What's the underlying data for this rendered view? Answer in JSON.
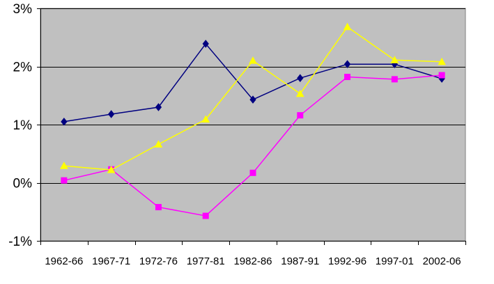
{
  "chart_data": {
    "type": "line",
    "title": "",
    "xlabel": "",
    "ylabel": "",
    "categories": [
      "1962-66",
      "1967-71",
      "1972-76",
      "1977-81",
      "1982-86",
      "1987-91",
      "1992-96",
      "1997-01",
      "2002-06"
    ],
    "ylim": [
      -1,
      3
    ],
    "y_ticks": [
      -1,
      0,
      1,
      2,
      3
    ],
    "y_tick_labels": [
      "-1%",
      "0%",
      "1%",
      "2%",
      "3%"
    ],
    "grid": "horizontal",
    "legend": "none",
    "plot_background": "#c0c0c0",
    "series": [
      {
        "color": "#000080",
        "marker": "diamond",
        "values": [
          1.05,
          1.18,
          1.3,
          2.39,
          1.43,
          1.8,
          2.04,
          2.04,
          1.79
        ]
      },
      {
        "color": "#ff00ff",
        "marker": "square",
        "values": [
          0.04,
          0.23,
          -0.42,
          -0.57,
          0.17,
          1.16,
          1.82,
          1.78,
          1.85
        ]
      },
      {
        "color": "#ffff00",
        "marker": "triangle",
        "values": [
          0.29,
          0.22,
          0.66,
          1.09,
          2.1,
          1.53,
          2.68,
          2.11,
          2.08
        ]
      }
    ]
  }
}
